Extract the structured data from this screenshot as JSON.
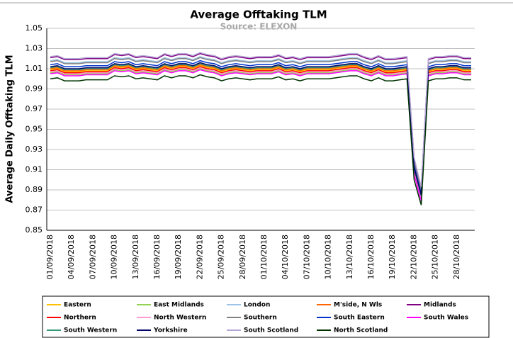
{
  "chart_data": {
    "type": "line",
    "title": "Average Offtaking TLM",
    "subtitle": "Source: ELEXON",
    "y_label": "Average Daily Offtaking TLM",
    "categories": [
      "01/09/2018",
      null,
      null,
      "04/09/2018",
      null,
      null,
      "07/09/2018",
      null,
      null,
      "10/09/2018",
      null,
      null,
      "13/09/2018",
      null,
      null,
      "16/09/2018",
      null,
      null,
      "19/09/2018",
      null,
      null,
      "22/09/2018",
      null,
      null,
      "25/09/2018",
      null,
      null,
      "28/09/2018",
      null,
      null,
      "01/10/2018",
      null,
      null,
      "04/10/2018",
      null,
      null,
      "07/10/2018",
      null,
      null,
      "10/10/2018",
      null,
      null,
      "13/10/2018",
      null,
      null,
      "16/10/2018",
      null,
      null,
      "19/10/2018",
      null,
      null,
      "22/10/2018",
      null,
      null,
      "25/10/2018",
      null,
      null,
      "28/10/2018",
      null,
      null
    ],
    "ylim": [
      0.85,
      1.05
    ],
    "yticks": [
      0.85,
      0.87,
      0.89,
      0.91,
      0.93,
      0.95,
      0.97,
      0.99,
      1.01,
      1.03,
      1.05
    ],
    "grid": true,
    "legend": "bottom",
    "series": [
      {
        "name": "Eastern",
        "color": "#ffc000",
        "values": [
          1.009,
          1.01,
          1.007,
          1.007,
          1.007,
          1.008,
          1.008,
          1.008,
          1.008,
          1.012,
          1.011,
          1.012,
          1.009,
          1.01,
          1.009,
          1.008,
          1.012,
          1.01,
          1.012,
          1.012,
          1.01,
          1.013,
          1.011,
          1.01,
          1.007,
          1.009,
          1.01,
          1.009,
          1.008,
          1.009,
          1.009,
          1.009,
          1.011,
          1.008,
          1.009,
          1.007,
          1.009,
          1.009,
          1.009,
          1.009,
          1.01,
          1.011,
          1.012,
          1.012,
          1.009,
          1.007,
          1.01,
          1.007,
          1.007,
          1.008,
          1.009,
          0.909,
          0.882,
          1.007,
          1.009,
          1.009,
          1.01,
          1.01,
          1.008,
          1.008
        ]
      },
      {
        "name": "East Midlands",
        "color": "#92d050",
        "values": [
          1.006,
          1.007,
          1.004,
          1.004,
          1.004,
          1.005,
          1.005,
          1.005,
          1.005,
          1.009,
          1.008,
          1.009,
          1.006,
          1.007,
          1.006,
          1.005,
          1.009,
          1.007,
          1.009,
          1.009,
          1.007,
          1.01,
          1.008,
          1.007,
          1.004,
          1.006,
          1.007,
          1.006,
          1.005,
          1.006,
          1.006,
          1.006,
          1.008,
          1.005,
          1.006,
          1.004,
          1.006,
          1.006,
          1.006,
          1.006,
          1.007,
          1.008,
          1.009,
          1.009,
          1.006,
          1.004,
          1.007,
          1.004,
          1.004,
          1.005,
          1.006,
          0.906,
          0.88,
          1.004,
          1.006,
          1.006,
          1.007,
          1.007,
          1.005,
          1.005
        ]
      },
      {
        "name": "London",
        "color": "#9dc3e6",
        "values": [
          1.018,
          1.019,
          1.016,
          1.016,
          1.016,
          1.017,
          1.017,
          1.017,
          1.017,
          1.021,
          1.02,
          1.021,
          1.018,
          1.019,
          1.018,
          1.017,
          1.021,
          1.019,
          1.021,
          1.021,
          1.019,
          1.022,
          1.02,
          1.019,
          1.016,
          1.018,
          1.019,
          1.018,
          1.017,
          1.018,
          1.018,
          1.018,
          1.02,
          1.017,
          1.018,
          1.016,
          1.018,
          1.018,
          1.018,
          1.018,
          1.019,
          1.02,
          1.021,
          1.021,
          1.018,
          1.016,
          1.019,
          1.016,
          1.016,
          1.017,
          1.018,
          0.918,
          0.889,
          1.016,
          1.018,
          1.018,
          1.019,
          1.019,
          1.017,
          1.017
        ]
      },
      {
        "name": "M'side, N Wls",
        "color": "#ff6600",
        "values": [
          1.01,
          1.011,
          1.008,
          1.008,
          1.008,
          1.009,
          1.009,
          1.009,
          1.009,
          1.013,
          1.012,
          1.013,
          1.01,
          1.011,
          1.01,
          1.009,
          1.013,
          1.011,
          1.013,
          1.013,
          1.011,
          1.014,
          1.012,
          1.011,
          1.008,
          1.01,
          1.011,
          1.01,
          1.009,
          1.01,
          1.01,
          1.01,
          1.012,
          1.009,
          1.01,
          1.008,
          1.01,
          1.01,
          1.01,
          1.01,
          1.011,
          1.012,
          1.013,
          1.013,
          1.01,
          1.008,
          1.011,
          1.008,
          1.008,
          1.009,
          1.01,
          0.91,
          0.883,
          1.008,
          1.01,
          1.01,
          1.011,
          1.011,
          1.009,
          1.009
        ]
      },
      {
        "name": "Midlands",
        "color": "#800080",
        "values": [
          1.021,
          1.022,
          1.019,
          1.019,
          1.019,
          1.02,
          1.02,
          1.02,
          1.02,
          1.024,
          1.023,
          1.024,
          1.021,
          1.022,
          1.021,
          1.02,
          1.024,
          1.022,
          1.024,
          1.024,
          1.022,
          1.025,
          1.023,
          1.022,
          1.019,
          1.021,
          1.022,
          1.021,
          1.02,
          1.021,
          1.021,
          1.021,
          1.023,
          1.02,
          1.021,
          1.019,
          1.021,
          1.021,
          1.021,
          1.021,
          1.022,
          1.023,
          1.024,
          1.024,
          1.021,
          1.019,
          1.022,
          1.019,
          1.019,
          1.02,
          1.021,
          0.921,
          0.892,
          1.019,
          1.021,
          1.021,
          1.022,
          1.022,
          1.02,
          1.02
        ]
      },
      {
        "name": "Northern",
        "color": "#ff0000",
        "values": [
          1.008,
          1.009,
          1.006,
          1.006,
          1.006,
          1.007,
          1.007,
          1.007,
          1.007,
          1.011,
          1.01,
          1.011,
          1.008,
          1.009,
          1.008,
          1.007,
          1.011,
          1.009,
          1.011,
          1.011,
          1.009,
          1.012,
          1.01,
          1.009,
          1.006,
          1.008,
          1.009,
          1.008,
          1.007,
          1.008,
          1.008,
          1.008,
          1.01,
          1.007,
          1.008,
          1.006,
          1.008,
          1.008,
          1.008,
          1.008,
          1.009,
          1.01,
          1.011,
          1.011,
          1.008,
          1.006,
          1.009,
          1.006,
          1.006,
          1.007,
          1.008,
          0.908,
          0.881,
          1.006,
          1.008,
          1.008,
          1.009,
          1.009,
          1.007,
          1.007
        ]
      },
      {
        "name": "North Western",
        "color": "#ff99cc",
        "values": [
          1.007,
          1.008,
          1.005,
          1.005,
          1.005,
          1.006,
          1.006,
          1.006,
          1.006,
          1.01,
          1.009,
          1.01,
          1.007,
          1.008,
          1.007,
          1.006,
          1.01,
          1.008,
          1.01,
          1.01,
          1.008,
          1.011,
          1.009,
          1.008,
          1.005,
          1.007,
          1.008,
          1.007,
          1.006,
          1.007,
          1.007,
          1.007,
          1.009,
          1.006,
          1.007,
          1.005,
          1.007,
          1.007,
          1.007,
          1.007,
          1.008,
          1.009,
          1.01,
          1.01,
          1.007,
          1.005,
          1.008,
          1.005,
          1.005,
          1.006,
          1.007,
          0.907,
          0.881,
          1.005,
          1.007,
          1.007,
          1.008,
          1.008,
          1.006,
          1.006
        ]
      },
      {
        "name": "Southern",
        "color": "#808080",
        "values": [
          1.017,
          1.018,
          1.015,
          1.015,
          1.015,
          1.016,
          1.016,
          1.016,
          1.016,
          1.02,
          1.019,
          1.02,
          1.017,
          1.018,
          1.017,
          1.016,
          1.02,
          1.018,
          1.02,
          1.02,
          1.018,
          1.021,
          1.019,
          1.018,
          1.015,
          1.017,
          1.018,
          1.017,
          1.016,
          1.017,
          1.017,
          1.017,
          1.019,
          1.016,
          1.017,
          1.015,
          1.017,
          1.017,
          1.017,
          1.017,
          1.018,
          1.019,
          1.02,
          1.02,
          1.017,
          1.015,
          1.018,
          1.015,
          1.015,
          1.016,
          1.017,
          0.917,
          0.889,
          1.015,
          1.017,
          1.017,
          1.018,
          1.018,
          1.016,
          1.016
        ]
      },
      {
        "name": "South Eastern",
        "color": "#0033cc",
        "values": [
          1.014,
          1.015,
          1.012,
          1.012,
          1.012,
          1.013,
          1.013,
          1.013,
          1.013,
          1.017,
          1.016,
          1.017,
          1.014,
          1.015,
          1.014,
          1.013,
          1.017,
          1.015,
          1.017,
          1.017,
          1.015,
          1.018,
          1.016,
          1.015,
          1.012,
          1.014,
          1.015,
          1.014,
          1.013,
          1.014,
          1.014,
          1.014,
          1.016,
          1.013,
          1.014,
          1.012,
          1.014,
          1.014,
          1.014,
          1.014,
          1.015,
          1.016,
          1.017,
          1.017,
          1.014,
          1.012,
          1.015,
          1.012,
          1.012,
          1.013,
          1.014,
          0.914,
          0.886,
          1.012,
          1.014,
          1.014,
          1.015,
          1.015,
          1.013,
          1.013
        ]
      },
      {
        "name": "South Wales",
        "color": "#ff00ff",
        "values": [
          1.005,
          1.006,
          1.003,
          1.003,
          1.003,
          1.004,
          1.004,
          1.004,
          1.004,
          1.008,
          1.007,
          1.008,
          1.005,
          1.006,
          1.005,
          1.004,
          1.008,
          1.006,
          1.008,
          1.008,
          1.006,
          1.009,
          1.007,
          1.006,
          1.003,
          1.005,
          1.006,
          1.005,
          1.004,
          1.005,
          1.005,
          1.005,
          1.007,
          1.004,
          1.005,
          1.003,
          1.005,
          1.005,
          1.005,
          1.005,
          1.006,
          1.007,
          1.008,
          1.008,
          1.005,
          1.003,
          1.006,
          1.003,
          1.003,
          1.004,
          1.005,
          0.905,
          0.879,
          1.003,
          1.005,
          1.005,
          1.006,
          1.006,
          1.004,
          1.004
        ]
      },
      {
        "name": "South Western",
        "color": "#339977",
        "values": [
          1.011,
          1.012,
          1.009,
          1.009,
          1.009,
          1.01,
          1.01,
          1.01,
          1.01,
          1.014,
          1.013,
          1.014,
          1.011,
          1.012,
          1.011,
          1.01,
          1.014,
          1.012,
          1.014,
          1.014,
          1.012,
          1.015,
          1.013,
          1.012,
          1.009,
          1.011,
          1.012,
          1.011,
          1.01,
          1.011,
          1.011,
          1.011,
          1.013,
          1.01,
          1.011,
          1.009,
          1.011,
          1.011,
          1.011,
          1.011,
          1.012,
          1.013,
          1.014,
          1.014,
          1.011,
          1.009,
          1.012,
          1.009,
          1.009,
          1.01,
          1.011,
          0.911,
          0.884,
          1.009,
          1.011,
          1.011,
          1.012,
          1.012,
          1.01,
          1.01
        ]
      },
      {
        "name": "Yorkshire",
        "color": "#000066",
        "values": [
          1.012,
          1.013,
          1.01,
          1.01,
          1.01,
          1.011,
          1.011,
          1.011,
          1.011,
          1.015,
          1.014,
          1.015,
          1.012,
          1.013,
          1.012,
          1.011,
          1.015,
          1.013,
          1.015,
          1.015,
          1.013,
          1.016,
          1.014,
          1.013,
          1.01,
          1.012,
          1.013,
          1.012,
          1.011,
          1.012,
          1.012,
          1.012,
          1.014,
          1.011,
          1.012,
          1.01,
          1.012,
          1.012,
          1.012,
          1.012,
          1.013,
          1.014,
          1.015,
          1.015,
          1.012,
          1.01,
          1.013,
          1.01,
          1.01,
          1.011,
          1.012,
          0.912,
          0.885,
          1.01,
          1.012,
          1.012,
          1.013,
          1.013,
          1.011,
          1.011
        ]
      },
      {
        "name": "South Scotland",
        "color": "#b4a7d6",
        "values": [
          1.022,
          1.023,
          1.02,
          1.02,
          1.02,
          1.021,
          1.021,
          1.021,
          1.021,
          1.025,
          1.024,
          1.025,
          1.022,
          1.023,
          1.022,
          1.021,
          1.025,
          1.023,
          1.025,
          1.025,
          1.023,
          1.026,
          1.024,
          1.023,
          1.02,
          1.022,
          1.023,
          1.022,
          1.021,
          1.022,
          1.022,
          1.022,
          1.024,
          1.021,
          1.022,
          1.02,
          1.022,
          1.022,
          1.022,
          1.022,
          1.023,
          1.024,
          1.025,
          1.025,
          1.022,
          1.02,
          1.023,
          1.02,
          1.02,
          1.021,
          1.022,
          0.922,
          0.893,
          1.02,
          1.022,
          1.022,
          1.023,
          1.023,
          1.021,
          1.021
        ]
      },
      {
        "name": "North Scotland",
        "color": "#003300",
        "values": [
          1.0,
          1.001,
          0.998,
          0.998,
          0.998,
          0.999,
          0.999,
          0.999,
          0.999,
          1.003,
          1.002,
          1.003,
          1.0,
          1.001,
          1.0,
          0.999,
          1.003,
          1.001,
          1.003,
          1.003,
          1.001,
          1.004,
          1.002,
          1.001,
          0.998,
          1.0,
          1.001,
          1.0,
          0.999,
          1.0,
          1.0,
          1.0,
          1.002,
          0.999,
          1.0,
          0.998,
          1.0,
          1.0,
          1.0,
          1.0,
          1.001,
          1.002,
          1.003,
          1.003,
          1.0,
          0.998,
          1.001,
          0.998,
          0.998,
          0.999,
          1.0,
          0.9,
          0.875,
          0.998,
          1.0,
          1.0,
          1.001,
          1.001,
          0.999,
          0.999
        ]
      }
    ]
  }
}
